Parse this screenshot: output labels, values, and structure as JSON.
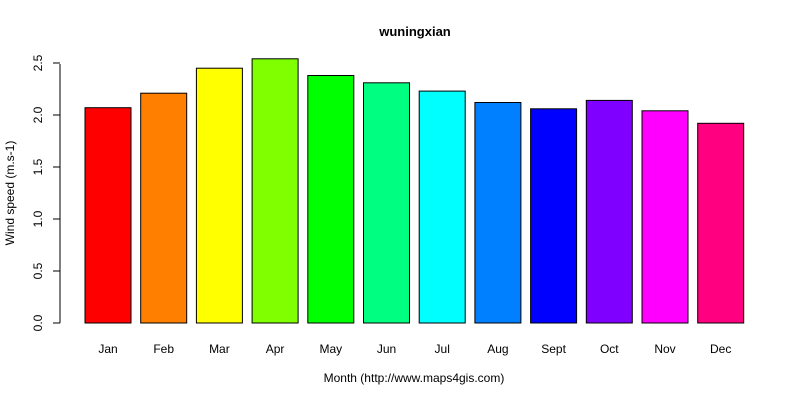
{
  "chart_data": {
    "type": "bar",
    "title": "wuningxian",
    "xlabel": "Month (http://www.maps4gis.com)",
    "ylabel": "Wind speed (m.s-1)",
    "categories": [
      "Jan",
      "Feb",
      "Mar",
      "Apr",
      "May",
      "Jun",
      "Jul",
      "Aug",
      "Sept",
      "Oct",
      "Nov",
      "Dec"
    ],
    "values": [
      2.07,
      2.21,
      2.45,
      2.54,
      2.38,
      2.31,
      2.23,
      2.12,
      2.06,
      2.14,
      2.04,
      1.92
    ],
    "colors": [
      "#FF0000",
      "#FF8000",
      "#FFFF00",
      "#80FF00",
      "#00FF00",
      "#00FF80",
      "#00FFFF",
      "#0080FF",
      "#0000FF",
      "#8000FF",
      "#FF00FF",
      "#FF0080"
    ],
    "ylim": [
      0,
      2.5
    ],
    "yticks": [
      0.0,
      0.5,
      1.0,
      1.5,
      2.0,
      2.5
    ],
    "ytick_labels": [
      "0.0",
      "0.5",
      "1.0",
      "1.5",
      "2.0",
      "2.5"
    ],
    "grid": false,
    "legend": "none"
  }
}
